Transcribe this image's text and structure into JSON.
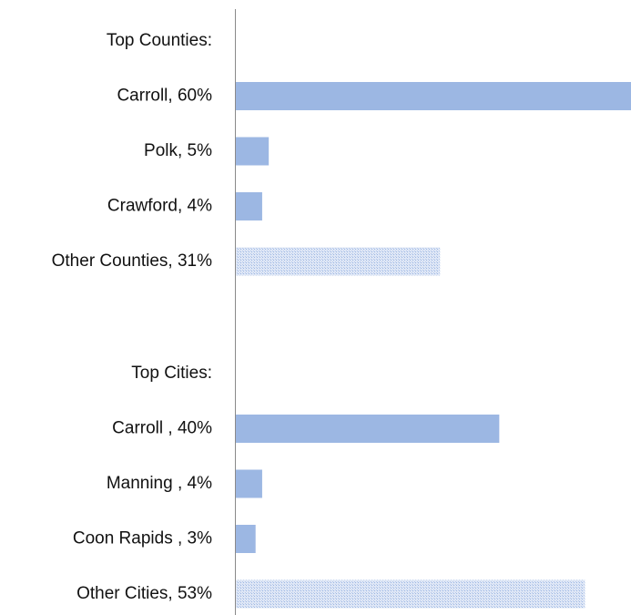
{
  "chart_data": {
    "type": "bar",
    "orientation": "horizontal",
    "title": "",
    "xlabel": "",
    "ylabel": "",
    "xlim": [
      0,
      60
    ],
    "grid": false,
    "legend": "none",
    "colors": {
      "bar": "#9cb7e3",
      "other_bar": "#c9d7f0"
    },
    "groups": [
      {
        "heading": "Top Counties:",
        "bars": [
          {
            "label": "Carroll, 60%",
            "value": 60,
            "style": "solid"
          },
          {
            "label": "Polk, 5%",
            "value": 5,
            "style": "solid"
          },
          {
            "label": "Crawford, 4%",
            "value": 4,
            "style": "solid"
          },
          {
            "label": "Other Counties, 31%",
            "value": 31,
            "style": "hatched"
          }
        ]
      },
      {
        "heading": "Top Cities:",
        "bars": [
          {
            "label": "Carroll , 40%",
            "value": 40,
            "style": "solid"
          },
          {
            "label": "Manning , 4%",
            "value": 4,
            "style": "solid"
          },
          {
            "label": "Coon Rapids , 3%",
            "value": 3,
            "style": "solid"
          },
          {
            "label": "Other Cities, 53%",
            "value": 53,
            "style": "hatched"
          }
        ]
      }
    ]
  }
}
